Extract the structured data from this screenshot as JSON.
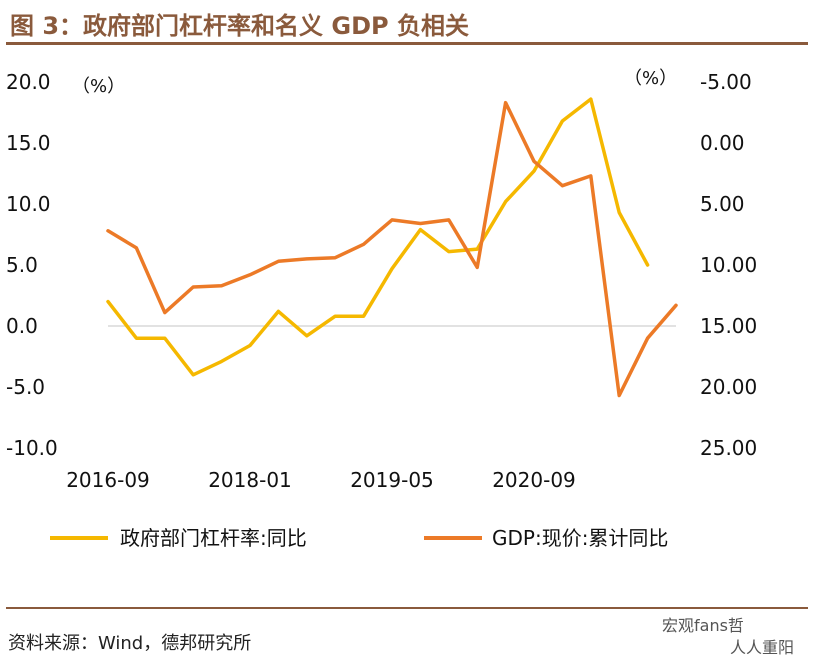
{
  "figure": {
    "title": "图 3：政府部门杠杆率和名义 GDP 负相关",
    "source": "资料来源：Wind，德邦研究所",
    "watermark": "宏观fans哲",
    "watermark_sub": "人人重阳"
  },
  "colors": {
    "gov": "#f5b800",
    "gdp": "#ec7a27",
    "accent": "#8a5a3c",
    "zero_line": "#d9d9d9"
  },
  "chart_data": {
    "type": "line",
    "title": "政府部门杠杆率和名义 GDP 负相关",
    "x_tick_labels": [
      "2016-09",
      "2018-01",
      "2019-05",
      "2020-09"
    ],
    "x_tick_index": [
      0,
      5,
      10,
      15
    ],
    "left_axis": {
      "unit_label": "（%）",
      "ylim": [
        -10,
        20
      ],
      "ticks": [
        "20.0",
        "15.0",
        "10.0",
        "5.0",
        "0.0",
        "-5.0",
        "-10.0"
      ]
    },
    "right_axis": {
      "unit_label": "（%）",
      "ylim": [
        25,
        -5
      ],
      "inverted": true,
      "ticks": [
        "-5.00",
        "0.00",
        "5.00",
        "10.00",
        "15.00",
        "20.00",
        "25.00"
      ]
    },
    "series": [
      {
        "name": "政府部门杠杆率:同比",
        "axis": "left",
        "color": "#f5b800",
        "values": [
          2.0,
          -1.0,
          -1.0,
          -4.0,
          -2.9,
          -1.6,
          1.2,
          -0.8,
          0.8,
          0.8,
          4.7,
          7.9,
          6.1,
          6.3,
          10.2,
          12.7,
          16.8,
          18.6,
          9.3,
          5.0
        ]
      },
      {
        "name": "GDP:现价:累计同比",
        "axis": "right",
        "color": "#ec7a27",
        "values": [
          7.2,
          8.6,
          13.9,
          11.8,
          11.7,
          10.8,
          9.7,
          9.5,
          9.4,
          8.3,
          6.3,
          6.6,
          6.3,
          10.2,
          -3.3,
          1.5,
          3.5,
          2.7,
          20.7,
          16.0,
          13.3
        ]
      }
    ]
  }
}
